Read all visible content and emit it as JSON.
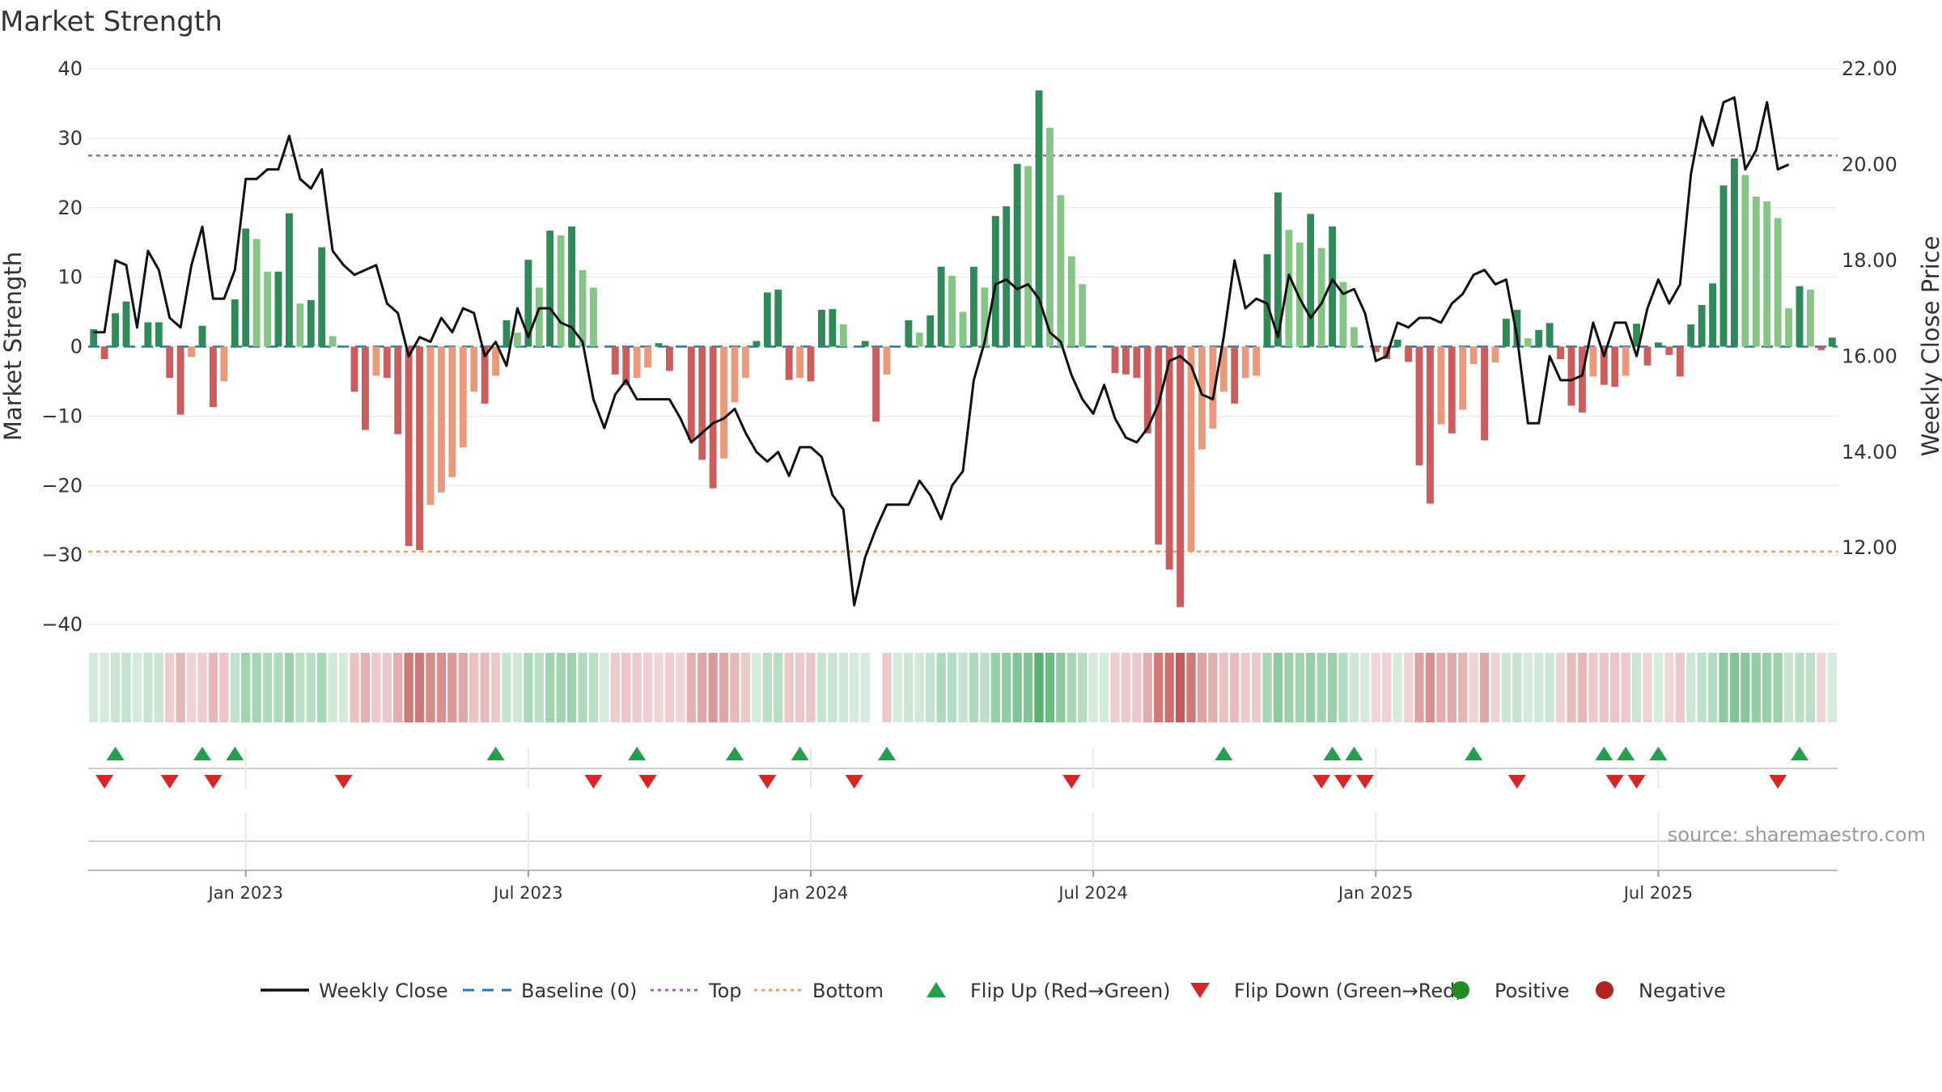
{
  "chart_data": {
    "type": "bar+line",
    "title": "Market Strength",
    "ylabel_left": "Market Strength",
    "ylabel_right": "Weekly Close Price",
    "ylim_left": [
      -40,
      40
    ],
    "ylim_right": [
      10.4,
      22.0
    ],
    "yticks_left": [
      -40,
      -30,
      -20,
      -10,
      0,
      10,
      20,
      30,
      40
    ],
    "yticks_left_labels": [
      "−40",
      "−30",
      "−20",
      "−10",
      "0",
      "10",
      "20",
      "30",
      "40"
    ],
    "yticks_right": [
      12,
      14,
      16,
      18,
      20,
      22
    ],
    "yticks_right_labels": [
      "12.00",
      "14.00",
      "16.00",
      "18.00",
      "20.00",
      "22.00"
    ],
    "x_ticks": [
      {
        "index": 14,
        "label": "Jan 2023"
      },
      {
        "index": 40,
        "label": "Jul 2023"
      },
      {
        "index": 66,
        "label": "Jan 2024"
      },
      {
        "index": 92,
        "label": "Jul 2024"
      },
      {
        "index": 118,
        "label": "Jan 2025"
      },
      {
        "index": 144,
        "label": "Jul 2025"
      }
    ],
    "thresholds": {
      "top": 27.5,
      "bottom": -29.5,
      "baseline": 0
    },
    "strength": [
      2.5,
      -1.8,
      4.8,
      6.5,
      0,
      3.5,
      3.5,
      -4.5,
      -9.8,
      -1.5,
      3,
      -8.7,
      -5,
      6.8,
      17,
      15.5,
      10.8,
      10.8,
      19.2,
      6.2,
      6.7,
      14.3,
      1.5,
      0,
      -6.5,
      -12,
      -4.2,
      -4.5,
      -12.6,
      -28.7,
      -29.3,
      -22.8,
      -21,
      -18.8,
      -14.5,
      -6.5,
      -8.2,
      -4.2,
      3.8,
      2,
      12.5,
      8.5,
      16.7,
      16,
      17.3,
      11,
      8.5,
      0,
      -4,
      -5.6,
      -4.5,
      -3,
      0.5,
      -3.5,
      0,
      -13.4,
      -16.3,
      -20.4,
      -16.1,
      -8,
      -4.5,
      0.8,
      7.8,
      8.2,
      -4.8,
      -4.5,
      -5,
      5.3,
      5.4,
      3.2,
      0,
      0.8,
      -10.8,
      -4,
      0,
      3.8,
      2,
      4.5,
      11.5,
      10.2,
      5,
      11.5,
      8.5,
      18.8,
      20.2,
      26.3,
      26,
      36.9,
      31.5,
      21.8,
      13,
      9,
      0,
      0,
      -3.8,
      -4,
      -4.5,
      -12.5,
      -28.5,
      -32.1,
      -37.5,
      -29.5,
      -14.8,
      -11.8,
      -6.5,
      -8.2,
      -4.5,
      -4.2,
      13.3,
      22.2,
      16.8,
      15,
      19.1,
      14.2,
      17.3,
      9.3,
      2.8,
      0,
      -0.8,
      -1.8,
      1,
      -2.2,
      -17.1,
      -22.6,
      -11.2,
      -12.5,
      -9.1,
      -2.5,
      -13.5,
      -2.3,
      4,
      5.3,
      1.2,
      2.4,
      3.4,
      -1.8,
      -8.5,
      -9.5,
      -4.3,
      -5.5,
      -5.8,
      -4.2,
      3.3,
      -2.7,
      0.6,
      -1.2,
      -4.3,
      3.2,
      6,
      9.1,
      23.2,
      27.1,
      24.7,
      21.6,
      20.9,
      18.5,
      5.5,
      8.7,
      8.2,
      -0.5,
      1.3
    ],
    "weekly_close": [
      16.5,
      16.5,
      18.0,
      17.9,
      16.6,
      18.2,
      17.8,
      16.8,
      16.6,
      17.9,
      18.7,
      17.2,
      17.2,
      17.8,
      19.7,
      19.7,
      19.9,
      19.9,
      20.6,
      19.7,
      19.5,
      19.9,
      18.2,
      17.9,
      17.7,
      17.8,
      17.9,
      17.1,
      16.9,
      16.0,
      16.4,
      16.3,
      16.8,
      16.5,
      17.0,
      16.9,
      16.0,
      16.3,
      15.8,
      17.0,
      16.4,
      17.0,
      17.0,
      16.7,
      16.6,
      16.3,
      15.1,
      14.5,
      15.2,
      15.5,
      15.1,
      15.1,
      15.1,
      15.1,
      14.7,
      14.2,
      14.4,
      14.6,
      14.7,
      14.9,
      14.4,
      14.0,
      13.8,
      14.0,
      13.5,
      14.1,
      14.1,
      13.9,
      13.1,
      12.8,
      10.8,
      11.8,
      12.4,
      12.9,
      12.9,
      12.9,
      13.4,
      13.1,
      12.6,
      13.3,
      13.6,
      15.5,
      16.3,
      17.5,
      17.6,
      17.4,
      17.5,
      17.2,
      16.5,
      16.3,
      15.6,
      15.1,
      14.8,
      15.4,
      14.7,
      14.3,
      14.2,
      14.5,
      15.0,
      15.9,
      16.0,
      15.8,
      15.2,
      15.1,
      16.4,
      18.0,
      17.0,
      17.2,
      17.1,
      16.4,
      17.7,
      17.2,
      16.8,
      17.1,
      17.6,
      17.3,
      17.4,
      16.9,
      15.9,
      16.0,
      16.7,
      16.6,
      16.8,
      16.8,
      16.7,
      17.1,
      17.3,
      17.7,
      17.8,
      17.5,
      17.6,
      16.4,
      14.6,
      14.6,
      16.0,
      15.5,
      15.5,
      15.6,
      16.7,
      16.0,
      16.7,
      16.7,
      16.0,
      17.0,
      17.6,
      17.1,
      17.5,
      19.8,
      21.0,
      20.4,
      21.3,
      21.4,
      19.9,
      20.3,
      21.3,
      19.9,
      20.0
    ],
    "band": [
      {
        "sign": "g",
        "level": 0.2
      },
      {
        "sign": "g",
        "level": 0.2
      },
      {
        "sign": "g",
        "level": 0.25
      },
      {
        "sign": "g",
        "level": 0.28
      },
      {
        "sign": "g",
        "level": 0.2
      },
      {
        "sign": "g",
        "level": 0.26
      },
      {
        "sign": "g",
        "level": 0.26
      },
      {
        "sign": "r",
        "level": 0.25
      },
      {
        "sign": "r",
        "level": 0.35
      },
      {
        "sign": "r",
        "level": 0.22
      },
      {
        "sign": "r",
        "level": 0.25
      },
      {
        "sign": "r",
        "level": 0.34
      },
      {
        "sign": "r",
        "level": 0.28
      },
      {
        "sign": "g",
        "level": 0.3
      },
      {
        "sign": "g",
        "level": 0.45
      },
      {
        "sign": "g",
        "level": 0.43
      },
      {
        "sign": "g",
        "level": 0.38
      },
      {
        "sign": "g",
        "level": 0.38
      },
      {
        "sign": "g",
        "level": 0.48
      },
      {
        "sign": "g",
        "level": 0.33
      },
      {
        "sign": "g",
        "level": 0.33
      },
      {
        "sign": "g",
        "level": 0.42
      },
      {
        "sign": "g",
        "level": 0.22
      },
      {
        "sign": "g",
        "level": 0.2
      },
      {
        "sign": "r",
        "level": 0.3
      },
      {
        "sign": "r",
        "level": 0.38
      },
      {
        "sign": "r",
        "level": 0.26
      },
      {
        "sign": "r",
        "level": 0.27
      },
      {
        "sign": "r",
        "level": 0.4
      },
      {
        "sign": "r",
        "level": 0.65
      },
      {
        "sign": "r",
        "level": 0.66
      },
      {
        "sign": "r",
        "level": 0.57
      },
      {
        "sign": "r",
        "level": 0.54
      },
      {
        "sign": "r",
        "level": 0.5
      },
      {
        "sign": "r",
        "level": 0.43
      },
      {
        "sign": "r",
        "level": 0.3
      },
      {
        "sign": "r",
        "level": 0.33
      },
      {
        "sign": "r",
        "level": 0.26
      },
      {
        "sign": "g",
        "level": 0.28
      },
      {
        "sign": "g",
        "level": 0.24
      },
      {
        "sign": "g",
        "level": 0.4
      },
      {
        "sign": "g",
        "level": 0.33
      },
      {
        "sign": "g",
        "level": 0.45
      },
      {
        "sign": "g",
        "level": 0.44
      },
      {
        "sign": "g",
        "level": 0.46
      },
      {
        "sign": "g",
        "level": 0.38
      },
      {
        "sign": "g",
        "level": 0.33
      },
      {
        "sign": "g",
        "level": 0.2
      },
      {
        "sign": "r",
        "level": 0.25
      },
      {
        "sign": "r",
        "level": 0.28
      },
      {
        "sign": "r",
        "level": 0.26
      },
      {
        "sign": "r",
        "level": 0.23
      },
      {
        "sign": "r",
        "level": 0.2
      },
      {
        "sign": "r",
        "level": 0.24
      },
      {
        "sign": "r",
        "level": 0.2
      },
      {
        "sign": "r",
        "level": 0.38
      },
      {
        "sign": "r",
        "level": 0.43
      },
      {
        "sign": "r",
        "level": 0.5
      },
      {
        "sign": "r",
        "level": 0.43
      },
      {
        "sign": "r",
        "level": 0.33
      },
      {
        "sign": "r",
        "level": 0.26
      },
      {
        "sign": "g",
        "level": 0.2
      },
      {
        "sign": "g",
        "level": 0.33
      },
      {
        "sign": "g",
        "level": 0.34
      },
      {
        "sign": "r",
        "level": 0.27
      },
      {
        "sign": "r",
        "level": 0.26
      },
      {
        "sign": "r",
        "level": 0.28
      },
      {
        "sign": "g",
        "level": 0.27
      },
      {
        "sign": "g",
        "level": 0.27
      },
      {
        "sign": "g",
        "level": 0.24
      },
      {
        "sign": "g",
        "level": 0.2
      },
      {
        "sign": "g",
        "level": 0.2
      },
      {
        "sign": "r",
        "level": 0.35
      },
      {
        "sign": "r",
        "level": 0.26
      },
      {
        "sign": "g",
        "level": 0.2
      },
      {
        "sign": "g",
        "level": 0.25
      },
      {
        "sign": "g",
        "level": 0.22
      },
      {
        "sign": "g",
        "level": 0.28
      },
      {
        "sign": "g",
        "level": 0.38
      },
      {
        "sign": "g",
        "level": 0.36
      },
      {
        "sign": "g",
        "level": 0.28
      },
      {
        "sign": "g",
        "level": 0.38
      },
      {
        "sign": "g",
        "level": 0.33
      },
      {
        "sign": "g",
        "level": 0.5
      },
      {
        "sign": "g",
        "level": 0.52
      },
      {
        "sign": "g",
        "level": 0.6
      },
      {
        "sign": "g",
        "level": 0.6
      },
      {
        "sign": "g",
        "level": 0.8
      },
      {
        "sign": "g",
        "level": 0.7
      },
      {
        "sign": "g",
        "level": 0.55
      },
      {
        "sign": "g",
        "level": 0.42
      },
      {
        "sign": "g",
        "level": 0.35
      },
      {
        "sign": "g",
        "level": 0.2
      },
      {
        "sign": "g",
        "level": 0.2
      },
      {
        "sign": "r",
        "level": 0.25
      },
      {
        "sign": "r",
        "level": 0.26
      },
      {
        "sign": "r",
        "level": 0.27
      },
      {
        "sign": "r",
        "level": 0.4
      },
      {
        "sign": "r",
        "level": 0.65
      },
      {
        "sign": "r",
        "level": 0.7
      },
      {
        "sign": "r",
        "level": 0.8
      },
      {
        "sign": "r",
        "level": 0.66
      },
      {
        "sign": "r",
        "level": 0.45
      },
      {
        "sign": "r",
        "level": 0.4
      },
      {
        "sign": "r",
        "level": 0.3
      },
      {
        "sign": "r",
        "level": 0.33
      },
      {
        "sign": "r",
        "level": 0.26
      },
      {
        "sign": "r",
        "level": 0.26
      },
      {
        "sign": "g",
        "level": 0.42
      },
      {
        "sign": "g",
        "level": 0.55
      },
      {
        "sign": "g",
        "level": 0.47
      },
      {
        "sign": "g",
        "level": 0.45
      },
      {
        "sign": "g",
        "level": 0.5
      },
      {
        "sign": "g",
        "level": 0.44
      },
      {
        "sign": "g",
        "level": 0.47
      },
      {
        "sign": "g",
        "level": 0.36
      },
      {
        "sign": "g",
        "level": 0.24
      },
      {
        "sign": "g",
        "level": 0.2
      },
      {
        "sign": "r",
        "level": 0.2
      },
      {
        "sign": "r",
        "level": 0.22
      },
      {
        "sign": "g",
        "level": 0.2
      },
      {
        "sign": "r",
        "level": 0.22
      },
      {
        "sign": "r",
        "level": 0.45
      },
      {
        "sign": "r",
        "level": 0.54
      },
      {
        "sign": "r",
        "level": 0.4
      },
      {
        "sign": "r",
        "level": 0.42
      },
      {
        "sign": "r",
        "level": 0.36
      },
      {
        "sign": "r",
        "level": 0.22
      },
      {
        "sign": "r",
        "level": 0.43
      },
      {
        "sign": "r",
        "level": 0.22
      },
      {
        "sign": "g",
        "level": 0.25
      },
      {
        "sign": "g",
        "level": 0.28
      },
      {
        "sign": "g",
        "level": 0.2
      },
      {
        "sign": "g",
        "level": 0.23
      },
      {
        "sign": "g",
        "level": 0.25
      },
      {
        "sign": "r",
        "level": 0.22
      },
      {
        "sign": "r",
        "level": 0.33
      },
      {
        "sign": "r",
        "level": 0.35
      },
      {
        "sign": "r",
        "level": 0.26
      },
      {
        "sign": "r",
        "level": 0.28
      },
      {
        "sign": "r",
        "level": 0.28
      },
      {
        "sign": "r",
        "level": 0.26
      },
      {
        "sign": "g",
        "level": 0.25
      },
      {
        "sign": "r",
        "level": 0.22
      },
      {
        "sign": "g",
        "level": 0.2
      },
      {
        "sign": "r",
        "level": 0.2
      },
      {
        "sign": "r",
        "level": 0.26
      },
      {
        "sign": "g",
        "level": 0.25
      },
      {
        "sign": "g",
        "level": 0.3
      },
      {
        "sign": "g",
        "level": 0.36
      },
      {
        "sign": "g",
        "level": 0.55
      },
      {
        "sign": "g",
        "level": 0.6
      },
      {
        "sign": "g",
        "level": 0.58
      },
      {
        "sign": "g",
        "level": 0.52
      },
      {
        "sign": "g",
        "level": 0.5
      },
      {
        "sign": "g",
        "level": 0.47
      },
      {
        "sign": "g",
        "level": 0.27
      },
      {
        "sign": "g",
        "level": 0.33
      },
      {
        "sign": "g",
        "level": 0.32
      },
      {
        "sign": "r",
        "level": 0.2
      },
      {
        "sign": "g",
        "level": 0.2
      }
    ],
    "band_gap_index": 72,
    "flip_up_indices": [
      2,
      10,
      13,
      37,
      50,
      59,
      65,
      73,
      104,
      114,
      116,
      127,
      139,
      141,
      144,
      157
    ],
    "flip_down_indices": [
      1,
      7,
      11,
      23,
      46,
      51,
      62,
      70,
      90,
      113,
      115,
      117,
      131,
      140,
      142,
      155
    ],
    "legend": [
      {
        "label": "Weekly Close",
        "kind": "line",
        "color": "#111111"
      },
      {
        "label": "Baseline (0)",
        "kind": "dash",
        "color": "#1f77b4"
      },
      {
        "label": "Top",
        "kind": "dot",
        "color": "#9467bd"
      },
      {
        "label": "Bottom",
        "kind": "dot",
        "color": "#ff9a5c"
      },
      {
        "label": "Flip Up (Red→Green)",
        "kind": "tri-up",
        "color": "#23a04a"
      },
      {
        "label": "Flip Down (Green→Red)",
        "kind": "tri-down",
        "color": "#d62728"
      },
      {
        "label": "Positive",
        "kind": "dot-marker",
        "color": "#228b22"
      },
      {
        "label": "Negative",
        "kind": "dot-marker",
        "color": "#b22222"
      }
    ],
    "source": "source: sharemaestro.com"
  },
  "colors": {
    "pos_strong": "#2e8b57",
    "pos_weak": "#85c686",
    "neg_strong": "#cd5c5c",
    "neg_weak": "#ea9a7a",
    "line": "#111111",
    "grid": "#e6e6e6"
  }
}
